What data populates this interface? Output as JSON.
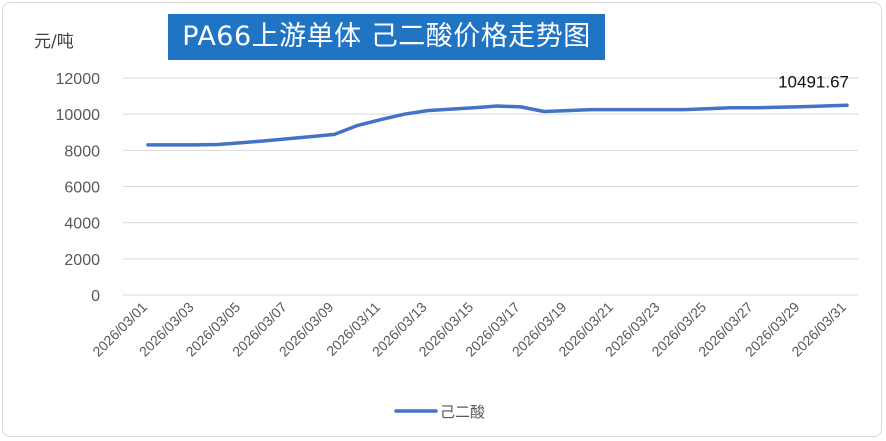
{
  "chart_data": {
    "type": "line",
    "title": "PA66上游单体 己二酸价格走势图",
    "ylabel": "元/吨",
    "xlabel": "",
    "ylim": [
      0,
      12000
    ],
    "yticks": [
      0,
      2000,
      4000,
      6000,
      8000,
      10000,
      12000
    ],
    "grid": true,
    "legend": "bottom",
    "annotation": "10491.67",
    "x_tick_labels": [
      "2026/03/01",
      "2026/03/03",
      "2026/03/05",
      "2026/03/07",
      "2026/03/09",
      "2026/03/11",
      "2026/03/13",
      "2026/03/15",
      "2026/03/17",
      "2026/03/19",
      "2026/03/21",
      "2026/03/23",
      "2026/03/25",
      "2026/03/27",
      "2026/03/29",
      "2026/03/31"
    ],
    "x": [
      "2026/03/01",
      "2026/03/02",
      "2026/03/03",
      "2026/03/04",
      "2026/03/05",
      "2026/03/06",
      "2026/03/07",
      "2026/03/08",
      "2026/03/09",
      "2026/03/10",
      "2026/03/11",
      "2026/03/12",
      "2026/03/13",
      "2026/03/14",
      "2026/03/15",
      "2026/03/16",
      "2026/03/17",
      "2026/03/18",
      "2026/03/19",
      "2026/03/20",
      "2026/03/21",
      "2026/03/22",
      "2026/03/23",
      "2026/03/24",
      "2026/03/25",
      "2026/03/26",
      "2026/03/27",
      "2026/03/28",
      "2026/03/29",
      "2026/03/30",
      "2026/03/31"
    ],
    "series": [
      {
        "name": "己二酸",
        "color": "#4472c4",
        "values": [
          8300,
          8300,
          8300,
          8320,
          8420,
          8520,
          8640,
          8760,
          8880,
          9380,
          9700,
          10000,
          10200,
          10280,
          10360,
          10450,
          10400,
          10150,
          10200,
          10250,
          10250,
          10250,
          10250,
          10250,
          10300,
          10350,
          10350,
          10380,
          10410,
          10450,
          10491.67
        ]
      }
    ]
  }
}
